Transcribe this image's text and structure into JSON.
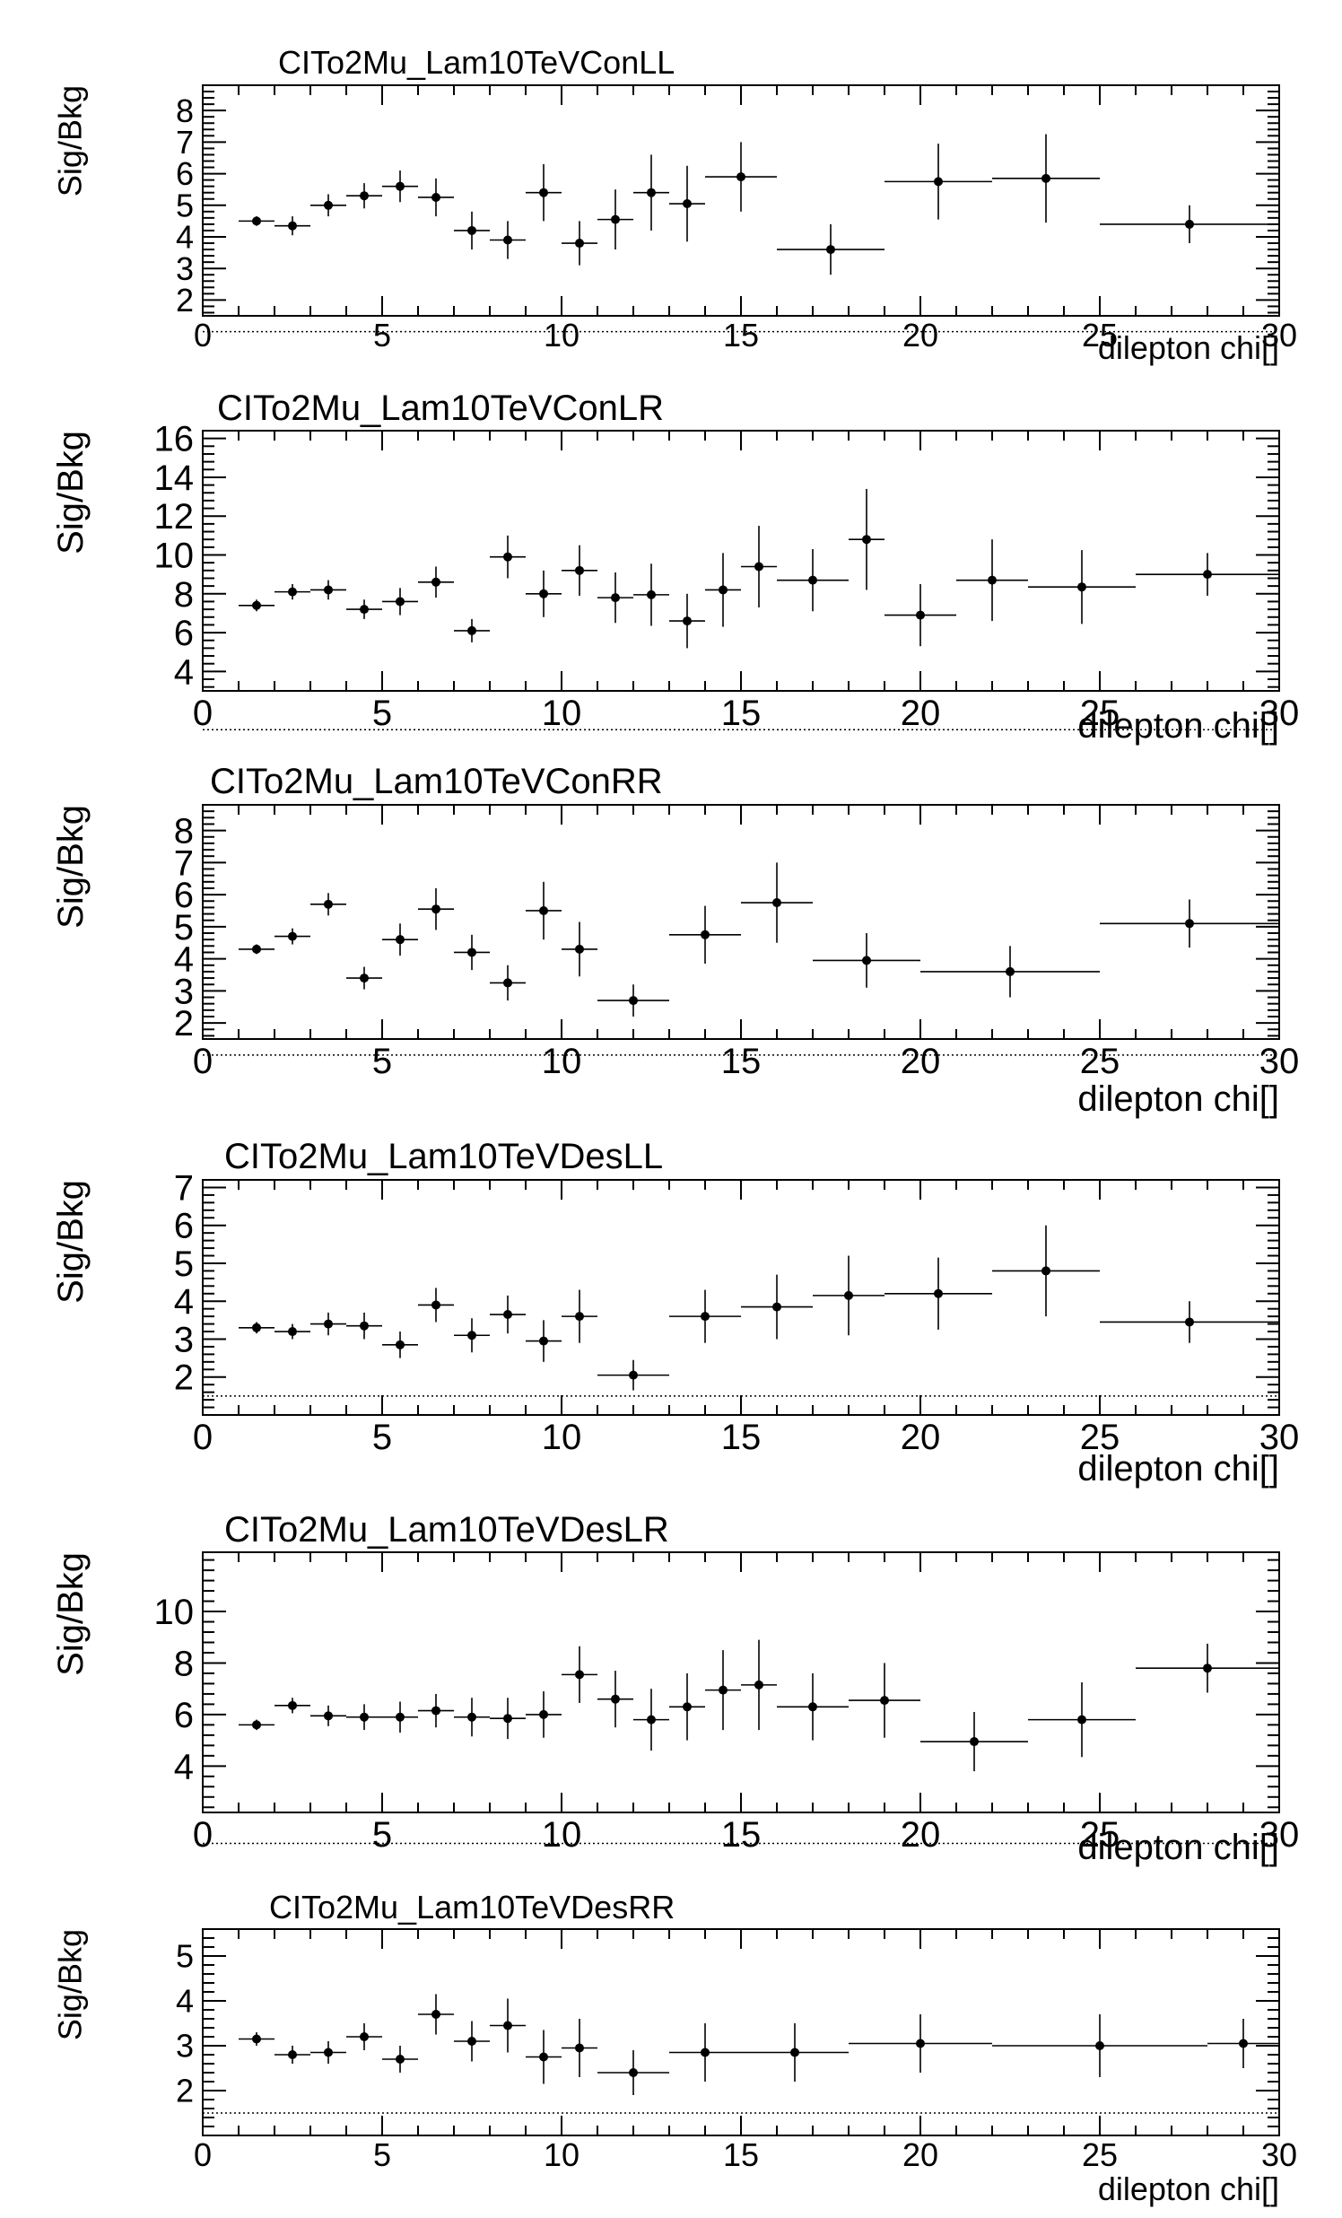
{
  "chart_data": [
    {
      "type": "scatter",
      "title": "CITo2Mu_Lam10TeVConLL",
      "xlabel": "dilepton chi[]",
      "ylabel": "Sig/Bkg",
      "xlim": [
        0,
        30
      ],
      "ylim": [
        1.5,
        8.8
      ],
      "xticks": [
        0,
        5,
        10,
        15,
        20,
        25,
        30
      ],
      "yticks": [
        2,
        3,
        4,
        5,
        6,
        7,
        8
      ],
      "reference_line": 1,
      "points": [
        {
          "x": 1.5,
          "xerr": 0.5,
          "y": 4.5,
          "yerr": 0.15
        },
        {
          "x": 2.5,
          "xerr": 0.5,
          "y": 4.35,
          "yerr": 0.3
        },
        {
          "x": 3.5,
          "xerr": 0.5,
          "y": 5.0,
          "yerr": 0.35
        },
        {
          "x": 4.5,
          "xerr": 0.5,
          "y": 5.3,
          "yerr": 0.4
        },
        {
          "x": 5.5,
          "xerr": 0.5,
          "y": 5.6,
          "yerr": 0.5
        },
        {
          "x": 6.5,
          "xerr": 0.5,
          "y": 5.25,
          "yerr": 0.6
        },
        {
          "x": 7.5,
          "xerr": 0.5,
          "y": 4.2,
          "yerr": 0.6
        },
        {
          "x": 8.5,
          "xerr": 0.5,
          "y": 3.9,
          "yerr": 0.6
        },
        {
          "x": 9.5,
          "xerr": 0.5,
          "y": 5.4,
          "yerr": 0.9
        },
        {
          "x": 10.5,
          "xerr": 0.5,
          "y": 3.8,
          "yerr": 0.7
        },
        {
          "x": 11.5,
          "xerr": 0.5,
          "y": 4.55,
          "yerr": 0.95
        },
        {
          "x": 12.5,
          "xerr": 0.5,
          "y": 5.4,
          "yerr": 1.2
        },
        {
          "x": 13.5,
          "xerr": 0.5,
          "y": 5.05,
          "yerr": 1.2
        },
        {
          "x": 15,
          "xerr": 1.0,
          "y": 5.9,
          "yerr": 1.1
        },
        {
          "x": 17.5,
          "xerr": 1.5,
          "y": 3.6,
          "yerr": 0.8
        },
        {
          "x": 20.5,
          "xerr": 1.5,
          "y": 5.75,
          "yerr": 1.2
        },
        {
          "x": 23.5,
          "xerr": 1.5,
          "y": 5.85,
          "yerr": 1.4
        },
        {
          "x": 27.5,
          "xerr": 2.5,
          "y": 4.4,
          "yerr": 0.6
        }
      ]
    },
    {
      "type": "scatter",
      "title": "CITo2Mu_Lam10TeVConLR",
      "xlabel": "dilepton chi[]",
      "ylabel": "Sig/Bkg",
      "xlim": [
        0,
        30
      ],
      "ylim": [
        3,
        16.4
      ],
      "xticks": [
        0,
        5,
        10,
        15,
        20,
        25,
        30
      ],
      "yticks": [
        4,
        6,
        8,
        10,
        12,
        14,
        16
      ],
      "reference_line": 1,
      "points": [
        {
          "x": 1.5,
          "xerr": 0.5,
          "y": 7.4,
          "yerr": 0.3
        },
        {
          "x": 2.5,
          "xerr": 0.5,
          "y": 8.1,
          "yerr": 0.4
        },
        {
          "x": 3.5,
          "xerr": 0.5,
          "y": 8.2,
          "yerr": 0.5
        },
        {
          "x": 4.5,
          "xerr": 0.5,
          "y": 7.2,
          "yerr": 0.5
        },
        {
          "x": 5.5,
          "xerr": 0.5,
          "y": 7.6,
          "yerr": 0.7
        },
        {
          "x": 6.5,
          "xerr": 0.5,
          "y": 8.6,
          "yerr": 0.8
        },
        {
          "x": 7.5,
          "xerr": 0.5,
          "y": 6.1,
          "yerr": 0.6
        },
        {
          "x": 8.5,
          "xerr": 0.5,
          "y": 9.9,
          "yerr": 1.1
        },
        {
          "x": 9.5,
          "xerr": 0.5,
          "y": 8.0,
          "yerr": 1.2
        },
        {
          "x": 10.5,
          "xerr": 0.5,
          "y": 9.2,
          "yerr": 1.3
        },
        {
          "x": 11.5,
          "xerr": 0.5,
          "y": 7.8,
          "yerr": 1.3
        },
        {
          "x": 12.5,
          "xerr": 0.5,
          "y": 7.95,
          "yerr": 1.6
        },
        {
          "x": 13.5,
          "xerr": 0.5,
          "y": 6.6,
          "yerr": 1.4
        },
        {
          "x": 14.5,
          "xerr": 0.5,
          "y": 8.2,
          "yerr": 1.9
        },
        {
          "x": 15.5,
          "xerr": 0.5,
          "y": 9.4,
          "yerr": 2.1
        },
        {
          "x": 17,
          "xerr": 1.0,
          "y": 8.7,
          "yerr": 1.6
        },
        {
          "x": 18.5,
          "xerr": 0.5,
          "y": 10.8,
          "yerr": 2.6
        },
        {
          "x": 20,
          "xerr": 1.0,
          "y": 6.9,
          "yerr": 1.6
        },
        {
          "x": 22,
          "xerr": 1.0,
          "y": 8.7,
          "yerr": 2.1
        },
        {
          "x": 24.5,
          "xerr": 1.5,
          "y": 8.35,
          "yerr": 1.9
        },
        {
          "x": 28,
          "xerr": 2.0,
          "y": 9.0,
          "yerr": 1.1
        }
      ]
    },
    {
      "type": "scatter",
      "title": "CITo2Mu_Lam10TeVConRR",
      "xlabel": "dilepton chi[]",
      "ylabel": "Sig/Bkg",
      "xlim": [
        0,
        30
      ],
      "ylim": [
        1.5,
        8.8
      ],
      "xticks": [
        0,
        5,
        10,
        15,
        20,
        25,
        30
      ],
      "yticks": [
        2,
        3,
        4,
        5,
        6,
        7,
        8
      ],
      "reference_line": 1,
      "points": [
        {
          "x": 1.5,
          "xerr": 0.5,
          "y": 4.3,
          "yerr": 0.15
        },
        {
          "x": 2.5,
          "xerr": 0.5,
          "y": 4.7,
          "yerr": 0.25
        },
        {
          "x": 3.5,
          "xerr": 0.5,
          "y": 5.7,
          "yerr": 0.35
        },
        {
          "x": 4.5,
          "xerr": 0.5,
          "y": 3.4,
          "yerr": 0.35
        },
        {
          "x": 5.5,
          "xerr": 0.5,
          "y": 4.6,
          "yerr": 0.5
        },
        {
          "x": 6.5,
          "xerr": 0.5,
          "y": 5.55,
          "yerr": 0.65
        },
        {
          "x": 7.5,
          "xerr": 0.5,
          "y": 4.2,
          "yerr": 0.55
        },
        {
          "x": 8.5,
          "xerr": 0.5,
          "y": 3.25,
          "yerr": 0.55
        },
        {
          "x": 9.5,
          "xerr": 0.5,
          "y": 5.5,
          "yerr": 0.9
        },
        {
          "x": 10.5,
          "xerr": 0.5,
          "y": 4.3,
          "yerr": 0.85
        },
        {
          "x": 12,
          "xerr": 1.0,
          "y": 2.7,
          "yerr": 0.5
        },
        {
          "x": 14,
          "xerr": 1.0,
          "y": 4.75,
          "yerr": 0.9
        },
        {
          "x": 16,
          "xerr": 1.0,
          "y": 5.75,
          "yerr": 1.25
        },
        {
          "x": 18.5,
          "xerr": 1.5,
          "y": 3.95,
          "yerr": 0.85
        },
        {
          "x": 22.5,
          "xerr": 2.5,
          "y": 3.6,
          "yerr": 0.8
        },
        {
          "x": 27.5,
          "xerr": 2.5,
          "y": 5.1,
          "yerr": 0.75
        }
      ]
    },
    {
      "type": "scatter",
      "title": "CITo2Mu_Lam10TeVDesLL",
      "xlabel": "dilepton chi[]",
      "ylabel": "Sig/Bkg",
      "xlim": [
        0,
        30
      ],
      "ylim": [
        1.0,
        7.2
      ],
      "xticks": [
        0,
        5,
        10,
        15,
        20,
        25,
        30
      ],
      "yticks": [
        2,
        3,
        4,
        5,
        6,
        7
      ],
      "reference_line": 1.5,
      "points": [
        {
          "x": 1.5,
          "xerr": 0.5,
          "y": 3.3,
          "yerr": 0.15
        },
        {
          "x": 2.5,
          "xerr": 0.5,
          "y": 3.2,
          "yerr": 0.2
        },
        {
          "x": 3.5,
          "xerr": 0.5,
          "y": 3.4,
          "yerr": 0.3
        },
        {
          "x": 4.5,
          "xerr": 0.5,
          "y": 3.35,
          "yerr": 0.35
        },
        {
          "x": 5.5,
          "xerr": 0.5,
          "y": 2.85,
          "yerr": 0.35
        },
        {
          "x": 6.5,
          "xerr": 0.5,
          "y": 3.9,
          "yerr": 0.45
        },
        {
          "x": 7.5,
          "xerr": 0.5,
          "y": 3.1,
          "yerr": 0.45
        },
        {
          "x": 8.5,
          "xerr": 0.5,
          "y": 3.65,
          "yerr": 0.5
        },
        {
          "x": 9.5,
          "xerr": 0.5,
          "y": 2.95,
          "yerr": 0.55
        },
        {
          "x": 10.5,
          "xerr": 0.5,
          "y": 3.6,
          "yerr": 0.7
        },
        {
          "x": 12,
          "xerr": 1.0,
          "y": 2.05,
          "yerr": 0.4
        },
        {
          "x": 14,
          "xerr": 1.0,
          "y": 3.6,
          "yerr": 0.7
        },
        {
          "x": 16,
          "xerr": 1.0,
          "y": 3.85,
          "yerr": 0.85
        },
        {
          "x": 18,
          "xerr": 1.0,
          "y": 4.15,
          "yerr": 1.05
        },
        {
          "x": 20.5,
          "xerr": 1.5,
          "y": 4.2,
          "yerr": 0.95
        },
        {
          "x": 23.5,
          "xerr": 1.5,
          "y": 4.8,
          "yerr": 1.2
        },
        {
          "x": 27.5,
          "xerr": 2.5,
          "y": 3.45,
          "yerr": 0.55
        }
      ]
    },
    {
      "type": "scatter",
      "title": "CITo2Mu_Lam10TeVDesLR",
      "xlabel": "dilepton chi[]",
      "ylabel": "Sig/Bkg",
      "xlim": [
        0,
        30
      ],
      "ylim": [
        2.2,
        12.3
      ],
      "xticks": [
        0,
        5,
        10,
        15,
        20,
        25,
        30
      ],
      "yticks": [
        4,
        6,
        8,
        10
      ],
      "reference_line": 1,
      "points": [
        {
          "x": 1.5,
          "xerr": 0.5,
          "y": 5.6,
          "yerr": 0.2
        },
        {
          "x": 2.5,
          "xerr": 0.5,
          "y": 6.35,
          "yerr": 0.3
        },
        {
          "x": 3.5,
          "xerr": 0.5,
          "y": 5.95,
          "yerr": 0.4
        },
        {
          "x": 4.5,
          "xerr": 0.5,
          "y": 5.9,
          "yerr": 0.5
        },
        {
          "x": 5.5,
          "xerr": 0.5,
          "y": 5.9,
          "yerr": 0.6
        },
        {
          "x": 6.5,
          "xerr": 0.5,
          "y": 6.15,
          "yerr": 0.65
        },
        {
          "x": 7.5,
          "xerr": 0.5,
          "y": 5.9,
          "yerr": 0.75
        },
        {
          "x": 8.5,
          "xerr": 0.5,
          "y": 5.85,
          "yerr": 0.8
        },
        {
          "x": 9.5,
          "xerr": 0.5,
          "y": 6.0,
          "yerr": 0.9
        },
        {
          "x": 10.5,
          "xerr": 0.5,
          "y": 7.55,
          "yerr": 1.1
        },
        {
          "x": 11.5,
          "xerr": 0.5,
          "y": 6.6,
          "yerr": 1.1
        },
        {
          "x": 12.5,
          "xerr": 0.5,
          "y": 5.8,
          "yerr": 1.2
        },
        {
          "x": 13.5,
          "xerr": 0.5,
          "y": 6.3,
          "yerr": 1.3
        },
        {
          "x": 14.5,
          "xerr": 0.5,
          "y": 6.95,
          "yerr": 1.55
        },
        {
          "x": 15.5,
          "xerr": 0.5,
          "y": 7.15,
          "yerr": 1.75
        },
        {
          "x": 17,
          "xerr": 1.0,
          "y": 6.3,
          "yerr": 1.3
        },
        {
          "x": 19,
          "xerr": 1.0,
          "y": 6.55,
          "yerr": 1.45
        },
        {
          "x": 21.5,
          "xerr": 1.5,
          "y": 4.95,
          "yerr": 1.15
        },
        {
          "x": 24.5,
          "xerr": 1.5,
          "y": 5.8,
          "yerr": 1.45
        },
        {
          "x": 28,
          "xerr": 2.0,
          "y": 7.8,
          "yerr": 0.95
        }
      ]
    },
    {
      "type": "scatter",
      "title": "CITo2Mu_Lam10TeVDesRR",
      "xlabel": "dilepton chi[]",
      "ylabel": "Sig/Bkg",
      "xlim": [
        0,
        30
      ],
      "ylim": [
        1.0,
        5.6
      ],
      "xticks": [
        0,
        5,
        10,
        15,
        20,
        25,
        30
      ],
      "yticks": [
        2,
        3,
        4,
        5
      ],
      "reference_line": 1.5,
      "points": [
        {
          "x": 1.5,
          "xerr": 0.5,
          "y": 3.15,
          "yerr": 0.15
        },
        {
          "x": 2.5,
          "xerr": 0.5,
          "y": 2.8,
          "yerr": 0.2
        },
        {
          "x": 3.5,
          "xerr": 0.5,
          "y": 2.85,
          "yerr": 0.25
        },
        {
          "x": 4.5,
          "xerr": 0.5,
          "y": 3.2,
          "yerr": 0.3
        },
        {
          "x": 5.5,
          "xerr": 0.5,
          "y": 2.7,
          "yerr": 0.3
        },
        {
          "x": 6.5,
          "xerr": 0.5,
          "y": 3.7,
          "yerr": 0.45
        },
        {
          "x": 7.5,
          "xerr": 0.5,
          "y": 3.1,
          "yerr": 0.45
        },
        {
          "x": 8.5,
          "xerr": 0.5,
          "y": 3.45,
          "yerr": 0.6
        },
        {
          "x": 9.5,
          "xerr": 0.5,
          "y": 2.75,
          "yerr": 0.6
        },
        {
          "x": 10.5,
          "xerr": 0.5,
          "y": 2.95,
          "yerr": 0.65
        },
        {
          "x": 12,
          "xerr": 1.0,
          "y": 2.4,
          "yerr": 0.5
        },
        {
          "x": 14,
          "xerr": 1.0,
          "y": 2.85,
          "yerr": 0.65
        },
        {
          "x": 16.5,
          "xerr": 1.5,
          "y": 2.85,
          "yerr": 0.65
        },
        {
          "x": 20,
          "xerr": 2.0,
          "y": 3.05,
          "yerr": 0.65
        },
        {
          "x": 25,
          "xerr": 3.0,
          "y": 3.0,
          "yerr": 0.7
        },
        {
          "x": 29,
          "xerr": 1.0,
          "y": 3.05,
          "yerr": 0.55
        }
      ]
    }
  ]
}
